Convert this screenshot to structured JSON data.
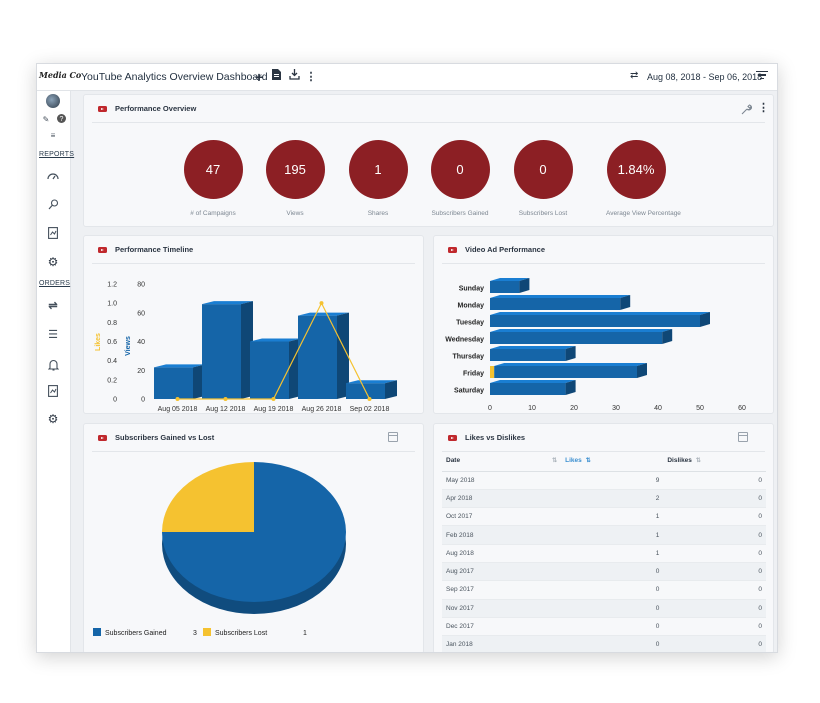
{
  "app": {
    "logo": "Media Co"
  },
  "header": {
    "title": "YouTube Analytics Overview Dashboard",
    "date_range": "Aug 08, 2018 - Sep 06, 2018"
  },
  "sidebar": {
    "reports_label": "REPORTS",
    "orders_label": "ORDERS"
  },
  "performance_overview": {
    "title": "Performance Overview",
    "kpis": [
      {
        "value": "47",
        "label": "# of Campaigns"
      },
      {
        "value": "195",
        "label": "Views"
      },
      {
        "value": "1",
        "label": "Shares"
      },
      {
        "value": "0",
        "label": "Subscribers Gained"
      },
      {
        "value": "0",
        "label": "Subscribers Lost"
      },
      {
        "value": "1.84%",
        "label": "Average View Percentage"
      }
    ]
  },
  "performance_timeline": {
    "title": "Performance Timeline"
  },
  "video_ad": {
    "title": "Video Ad Performance"
  },
  "subs": {
    "title": "Subscribers Gained vs Lost"
  },
  "likes": {
    "title": "Likes vs Dislikes",
    "columns": [
      "Date",
      "Likes",
      "Dislikes"
    ],
    "rows": [
      [
        "May 2018",
        "9",
        "0"
      ],
      [
        "Apr 2018",
        "2",
        "0"
      ],
      [
        "Oct 2017",
        "1",
        "0"
      ],
      [
        "Feb 2018",
        "1",
        "0"
      ],
      [
        "Aug 2018",
        "1",
        "0"
      ],
      [
        "Aug 2017",
        "0",
        "0"
      ],
      [
        "Sep 2017",
        "0",
        "0"
      ],
      [
        "Nov 2017",
        "0",
        "0"
      ],
      [
        "Dec 2017",
        "0",
        "0"
      ],
      [
        "Jan 2018",
        "0",
        "0"
      ]
    ]
  },
  "colors": {
    "bar": "#1565a8",
    "accent": "#f5c230",
    "kpi": "#8c1f24"
  },
  "chart_data": [
    {
      "type": "bar",
      "title": "Performance Timeline",
      "categories": [
        "Aug 05 2018",
        "Aug 12 2018",
        "Aug 19 2018",
        "Aug 26 2018",
        "Sep 02 2018"
      ],
      "series": [
        {
          "name": "Views",
          "type": "bar",
          "values": [
            22,
            66,
            40,
            58,
            11
          ]
        },
        {
          "name": "Likes",
          "type": "line",
          "values": [
            0,
            0,
            0,
            1,
            0
          ]
        }
      ],
      "ylabel": "Views",
      "y2label": "Likes",
      "ylim": [
        0,
        80
      ],
      "y2lim": [
        0,
        1.2
      ],
      "yticks": [
        "0",
        "20",
        "40",
        "60",
        "80"
      ],
      "y2ticks": [
        "0",
        "0.2",
        "0.4",
        "0.6",
        "0.8",
        "1.0",
        "1.2"
      ]
    },
    {
      "type": "bar",
      "orientation": "horizontal",
      "title": "Video Ad Performance",
      "categories": [
        "Sunday",
        "Monday",
        "Tuesday",
        "Wednesday",
        "Thursday",
        "Friday",
        "Saturday"
      ],
      "series": [
        {
          "type": "bar",
          "values": [
            7,
            31,
            50,
            41,
            18,
            34,
            18
          ]
        },
        {
          "type": "bar",
          "values": [
            0,
            0,
            0,
            0,
            0,
            1,
            0
          ]
        }
      ],
      "xticks": [
        "0",
        "10",
        "20",
        "30",
        "40",
        "50",
        "60"
      ],
      "xlim": [
        0,
        60
      ]
    },
    {
      "type": "pie",
      "title": "Subscribers Gained vs Lost",
      "series": [
        {
          "name": "Subscribers Gained",
          "value": 3
        },
        {
          "name": "Subscribers Lost",
          "value": 1
        }
      ],
      "legend_values": [
        "3",
        "1"
      ]
    }
  ]
}
